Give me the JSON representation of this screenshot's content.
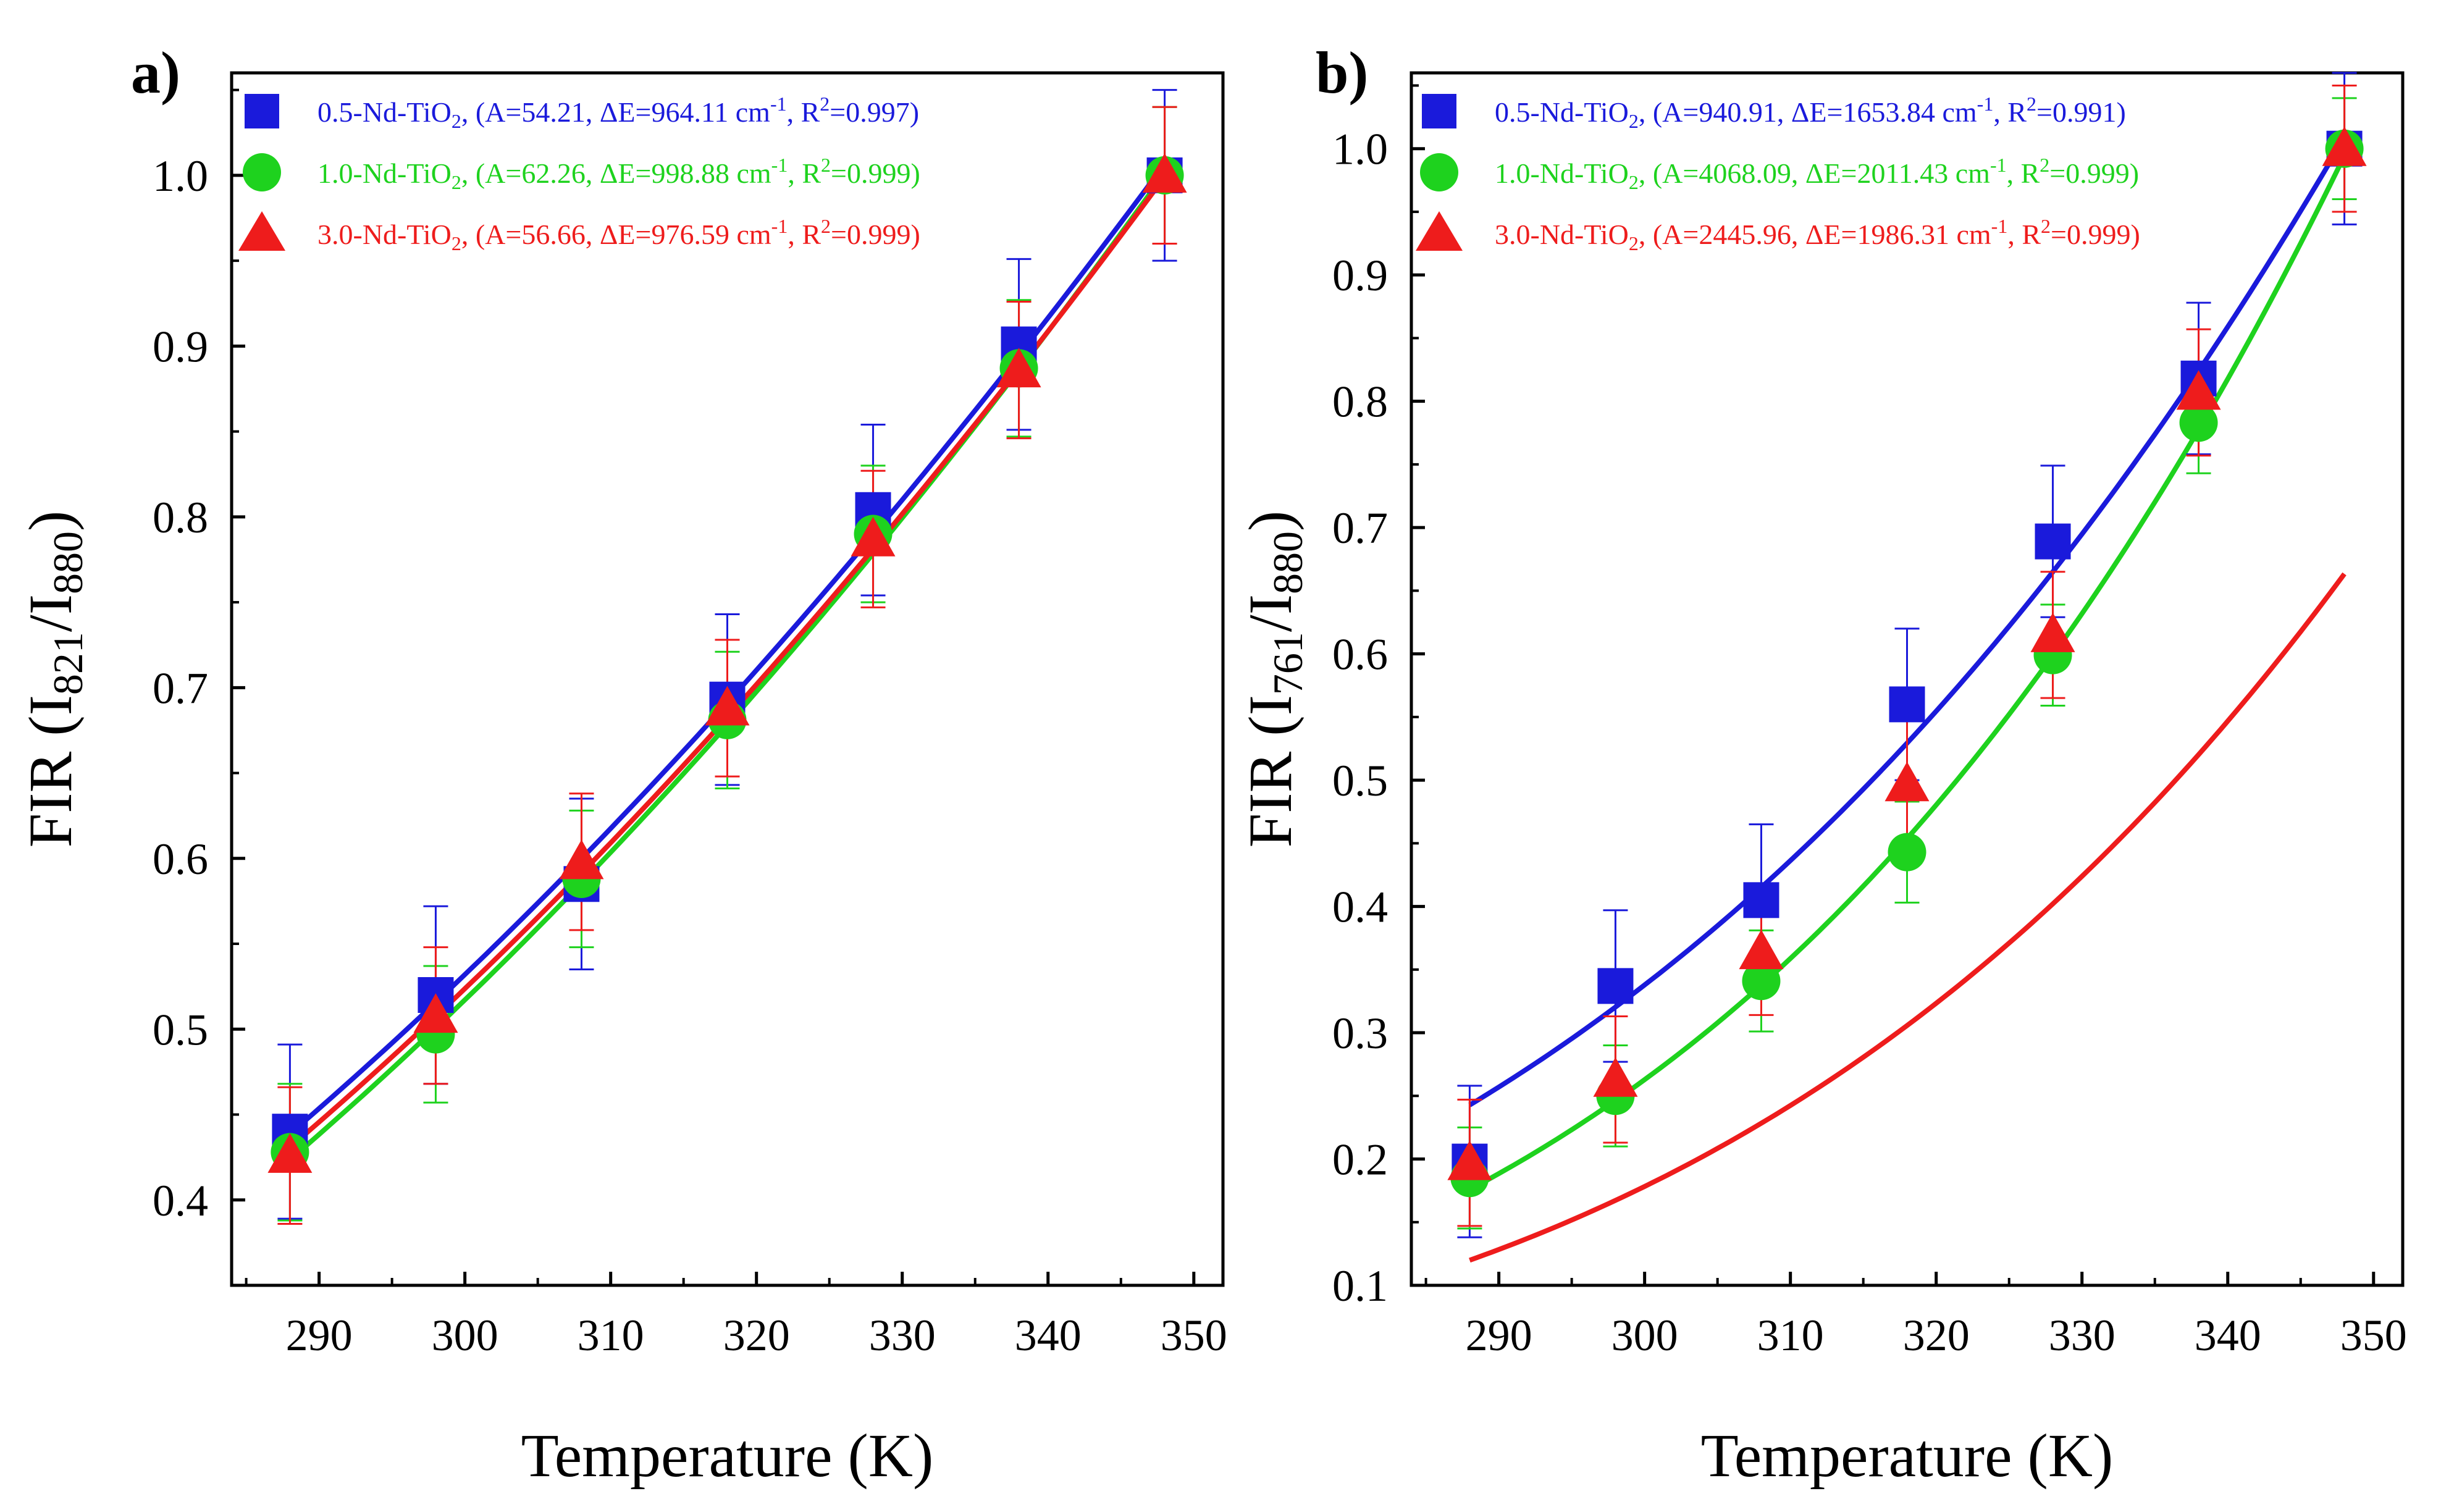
{
  "chart_data": [
    {
      "type": "scatter",
      "panel_label": "a)",
      "title": "",
      "xlabel": "Temperature (K)",
      "ylabel": {
        "prefix": "FIR (I",
        "sub1": "821",
        "mid": "/I",
        "sub2": "880",
        "suffix": ")"
      },
      "xlim": [
        284,
        352
      ],
      "ylim": [
        0.35,
        1.06
      ],
      "xticks": [
        290,
        300,
        310,
        320,
        330,
        340,
        350
      ],
      "yticks": [
        0.4,
        0.5,
        0.6,
        0.7,
        0.8,
        0.9,
        1.0
      ],
      "ytick_labels": [
        "0.4",
        "0.5",
        "0.6",
        "0.7",
        "0.8",
        "0.9",
        "1.0"
      ],
      "legend_position": "top-left",
      "x": [
        288,
        298,
        308,
        318,
        328,
        338,
        348
      ],
      "series": [
        {
          "name": "0.5-Nd-TiO2",
          "marker": "square",
          "color": "#1a1adb",
          "values": [
            0.44,
            0.52,
            0.585,
            0.693,
            0.804,
            0.901,
            1.0
          ],
          "errors": [
            0.051,
            0.052,
            0.05,
            0.05,
            0.05,
            0.05,
            0.05
          ],
          "fit": {
            "A": 54.21,
            "dE": 964.11
          },
          "legend": {
            "name": "0.5-Nd-TiO",
            "sub": "2",
            "params": ", (A=54.21, ΔE=964.11 cm",
            "sup": "-1",
            "r2": ", R",
            "r2sup": "2",
            "r2val": "=0.997)"
          }
        },
        {
          "name": "1.0-Nd-TiO2",
          "marker": "circle",
          "color": "#1ed21e",
          "values": [
            0.428,
            0.497,
            0.588,
            0.681,
            0.79,
            0.887,
            1.0
          ],
          "errors": [
            0.04,
            0.04,
            0.04,
            0.04,
            0.04,
            0.04,
            0.04
          ],
          "fit": {
            "A": 62.26,
            "dE": 998.88
          },
          "legend": {
            "name": "1.0-Nd-TiO",
            "sub": "2",
            "params": ", (A=62.26, ΔE=998.88 cm",
            "sup": "-1",
            "r2": ", R",
            "r2sup": "2",
            "r2val": "=0.999)"
          }
        },
        {
          "name": "3.0-Nd-TiO2",
          "marker": "triangle",
          "color": "#ee1c1c",
          "values": [
            0.426,
            0.508,
            0.598,
            0.688,
            0.787,
            0.886,
            1.0
          ],
          "errors": [
            0.04,
            0.04,
            0.04,
            0.04,
            0.04,
            0.04,
            0.04
          ],
          "fit": {
            "A": 56.66,
            "dE": 976.59
          },
          "legend": {
            "name": "3.0-Nd-TiO",
            "sub": "2",
            "params": ", (A=56.66, ΔE=976.59 cm",
            "sup": "-1",
            "r2": ", R",
            "r2sup": "2",
            "r2val": "=0.999)"
          }
        }
      ]
    },
    {
      "type": "scatter",
      "panel_label": "b)",
      "title": "",
      "xlabel": "Temperature (K)",
      "ylabel": {
        "prefix": "FIR (I",
        "sub1": "761",
        "mid": "/I",
        "sub2": "880",
        "suffix": ")"
      },
      "xlim": [
        284,
        352
      ],
      "ylim": [
        0.1,
        1.06
      ],
      "xticks": [
        290,
        300,
        310,
        320,
        330,
        340,
        350
      ],
      "yticks": [
        0.1,
        0.2,
        0.3,
        0.4,
        0.5,
        0.6,
        0.7,
        0.8,
        0.9,
        1.0
      ],
      "ytick_labels": [
        "0.1",
        "0.2",
        "0.3",
        "0.4",
        "0.5",
        "0.6",
        "0.7",
        "0.8",
        "0.9",
        "1.0"
      ],
      "legend_position": "top-left",
      "x": [
        288,
        298,
        308,
        318,
        328,
        338,
        348
      ],
      "series": [
        {
          "name": "0.5-Nd-TiO2",
          "marker": "square",
          "color": "#1a1adb",
          "values": [
            0.198,
            0.337,
            0.405,
            0.56,
            0.689,
            0.818,
            1.0
          ],
          "errors": [
            0.06,
            0.06,
            0.06,
            0.06,
            0.06,
            0.06,
            0.06
          ],
          "fit": {
            "A": 940.91,
            "dE": 1653.84
          },
          "legend": {
            "name": "0.5-Nd-TiO",
            "sub": "2",
            "params": ", (A=940.91, ΔE=1653.84 cm",
            "sup": "-1",
            "r2": ", R",
            "r2sup": "2",
            "r2val": "=0.991)"
          }
        },
        {
          "name": "1.0-Nd-TiO2",
          "marker": "circle",
          "color": "#1ed21e",
          "values": [
            0.185,
            0.25,
            0.341,
            0.443,
            0.599,
            0.783,
            1.0
          ],
          "errors": [
            0.04,
            0.04,
            0.04,
            0.04,
            0.04,
            0.04,
            0.04
          ],
          "fit": {
            "A": 4068.09,
            "dE": 2011.43
          },
          "legend": {
            "name": "1.0-Nd-TiO",
            "sub": "2",
            "params": ", (A=4068.09, ΔE=2011.43 cm",
            "sup": "-1",
            "r2": ", R",
            "r2sup": "2",
            "r2val": "=0.999)"
          }
        },
        {
          "name": "3.0-Nd-TiO2",
          "marker": "triangle",
          "color": "#ee1c1c",
          "values": [
            0.197,
            0.263,
            0.364,
            0.497,
            0.615,
            0.807,
            1.0
          ],
          "errors": [
            0.05,
            0.05,
            0.05,
            0.05,
            0.05,
            0.05,
            0.05
          ],
          "fit": {
            "A": 2445.96,
            "dE": 1986.31
          },
          "legend": {
            "name": "3.0-Nd-TiO",
            "sub": "2",
            "params": ", (A=2445.96, ΔE=1986.31 cm",
            "sup": "-1",
            "r2": ", R",
            "r2sup": "2",
            "r2val": "=0.999)"
          }
        }
      ]
    }
  ]
}
